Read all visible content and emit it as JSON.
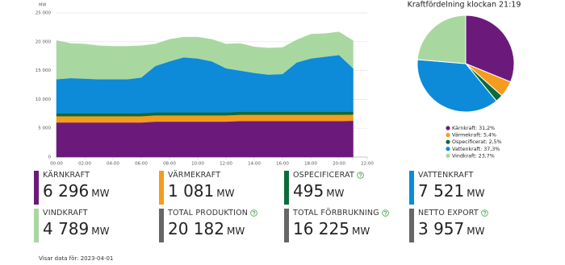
{
  "chart_data": [
    {
      "type": "stacked-area",
      "y_unit_label": "MW",
      "x": [
        0,
        1,
        2,
        3,
        4,
        5,
        6,
        7,
        8,
        9,
        10,
        11,
        12,
        13,
        14,
        15,
        16,
        17,
        18,
        19,
        20,
        21
      ],
      "xlim": [
        0,
        22
      ],
      "xticks": [
        {
          "value": 0,
          "label": "00:00"
        },
        {
          "value": 2,
          "label": "02:00"
        },
        {
          "value": 4,
          "label": "04:00"
        },
        {
          "value": 6,
          "label": "06:00"
        },
        {
          "value": 8,
          "label": "08:00"
        },
        {
          "value": 10,
          "label": "10:00"
        },
        {
          "value": 12,
          "label": "12:00"
        },
        {
          "value": 14,
          "label": "14:00"
        },
        {
          "value": 16,
          "label": "16:00"
        },
        {
          "value": 18,
          "label": "18:00"
        },
        {
          "value": 20,
          "label": "20:00"
        },
        {
          "value": 22,
          "label": "22:00"
        }
      ],
      "ylim": [
        0,
        25000
      ],
      "yticks": [
        0,
        {
          "value": 5000,
          "label": "5 000"
        },
        {
          "value": 10000,
          "label": "10 000"
        },
        {
          "value": 15000,
          "label": "15 000"
        },
        {
          "value": 20000,
          "label": "20 000"
        },
        {
          "value": 25000,
          "label": "25 000"
        }
      ],
      "grid": true,
      "series": [
        {
          "color": "#6b1a7b",
          "values": [
            6000,
            6000,
            6000,
            6000,
            6000,
            6000,
            6000,
            6150,
            6150,
            6150,
            6150,
            6150,
            6150,
            6250,
            6250,
            6250,
            6250,
            6250,
            6250,
            6250,
            6250,
            6296
          ]
        },
        {
          "color": "#f39c1f",
          "values": [
            1100,
            1100,
            1100,
            1100,
            1100,
            1100,
            1100,
            1100,
            1100,
            1100,
            1100,
            1100,
            1100,
            1100,
            1100,
            1100,
            1100,
            1100,
            1100,
            1100,
            1100,
            1081
          ]
        },
        {
          "color": "#0b6b3a",
          "values": [
            500,
            500,
            500,
            500,
            500,
            500,
            500,
            500,
            500,
            500,
            500,
            500,
            500,
            500,
            500,
            500,
            500,
            500,
            500,
            500,
            500,
            495
          ]
        },
        {
          "color": "#0d8ad8",
          "values": [
            5900,
            6100,
            6000,
            5900,
            5900,
            5900,
            6200,
            8050,
            8850,
            9550,
            9350,
            8850,
            7650,
            7150,
            6750,
            6450,
            6550,
            8550,
            9250,
            9550,
            9850,
            7521
          ]
        },
        {
          "color": "#a8d8a0",
          "values": [
            6700,
            6000,
            6000,
            5800,
            5700,
            5700,
            5500,
            3800,
            3800,
            3500,
            3700,
            3800,
            4200,
            4700,
            4500,
            4600,
            4600,
            3900,
            4200,
            4000,
            4000,
            4789
          ]
        }
      ]
    },
    {
      "type": "pie",
      "title": "Kraftfördelning klockan 21:19",
      "values": [
        31.2,
        5.4,
        2.5,
        37.3,
        23.7
      ],
      "value_labels": [
        "Kärnkraft: 31,2%",
        "Värmekraft: 5,4%",
        "Ospecificerat: 2,5%",
        "Vattenkraft: 37,3%",
        "Vindkraft: 23,7%"
      ],
      "colors": [
        "#6b1a7b",
        "#f39c1f",
        "#0b6b3a",
        "#0d8ad8",
        "#a8d8a0"
      ]
    }
  ],
  "cards": [
    {
      "label": "KÄRNKRAFT",
      "value": "6 296",
      "unit": "MW",
      "color": "#6b1a7b",
      "info": false
    },
    {
      "label": "VÄRMEKRAFT",
      "value": "1 081",
      "unit": "MW",
      "color": "#f39c1f",
      "info": false
    },
    {
      "label": "OSPECIFICERAT",
      "value": "495",
      "unit": "MW",
      "color": "#0b6b3a",
      "info": true
    },
    {
      "label": "VATTENKRAFT",
      "value": "7 521",
      "unit": "MW",
      "color": "#0d8ad8",
      "info": false
    },
    {
      "label": "VINDKRAFT",
      "value": "4 789",
      "unit": "MW",
      "color": "#a8d8a0",
      "info": false
    },
    {
      "label": "TOTAL PRODUKTION",
      "value": "20 182",
      "unit": "MW",
      "color": "#666666",
      "info": true
    },
    {
      "label": "TOTAL FÖRBRUKNING",
      "value": "16 225",
      "unit": "MW",
      "color": "#666666",
      "info": true
    },
    {
      "label": "NETTO EXPORT",
      "value": "3 957",
      "unit": "MW",
      "color": "#666666",
      "info": true
    }
  ],
  "footer": "Visar data för: 2023-04-01"
}
